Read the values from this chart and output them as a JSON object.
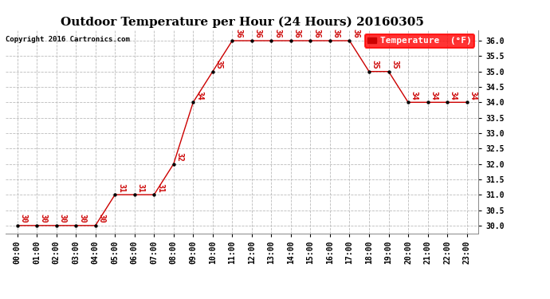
{
  "title": "Outdoor Temperature per Hour (24 Hours) 20160305",
  "copyright_text": "Copyright 2016 Cartronics.com",
  "legend_label": "Temperature  (°F)",
  "hours": [
    "00:00",
    "01:00",
    "02:00",
    "03:00",
    "04:00",
    "05:00",
    "06:00",
    "07:00",
    "08:00",
    "09:00",
    "10:00",
    "11:00",
    "12:00",
    "13:00",
    "14:00",
    "15:00",
    "16:00",
    "17:00",
    "18:00",
    "19:00",
    "20:00",
    "21:00",
    "22:00",
    "23:00"
  ],
  "temperatures": [
    30,
    30,
    30,
    30,
    30,
    31,
    31,
    31,
    32,
    34,
    35,
    36,
    36,
    36,
    36,
    36,
    36,
    36,
    35,
    35,
    34,
    34,
    34,
    34
  ],
  "line_color": "#cc0000",
  "marker_color": "#000000",
  "grid_color": "#bbbbbb",
  "bg_color": "#ffffff",
  "ylim_min": 29.75,
  "ylim_max": 36.35,
  "ytick_min": 30.0,
  "ytick_max": 36.0,
  "ytick_step": 0.5,
  "title_fontsize": 11,
  "label_fontsize": 7,
  "annot_fontsize": 7,
  "legend_fontsize": 8
}
